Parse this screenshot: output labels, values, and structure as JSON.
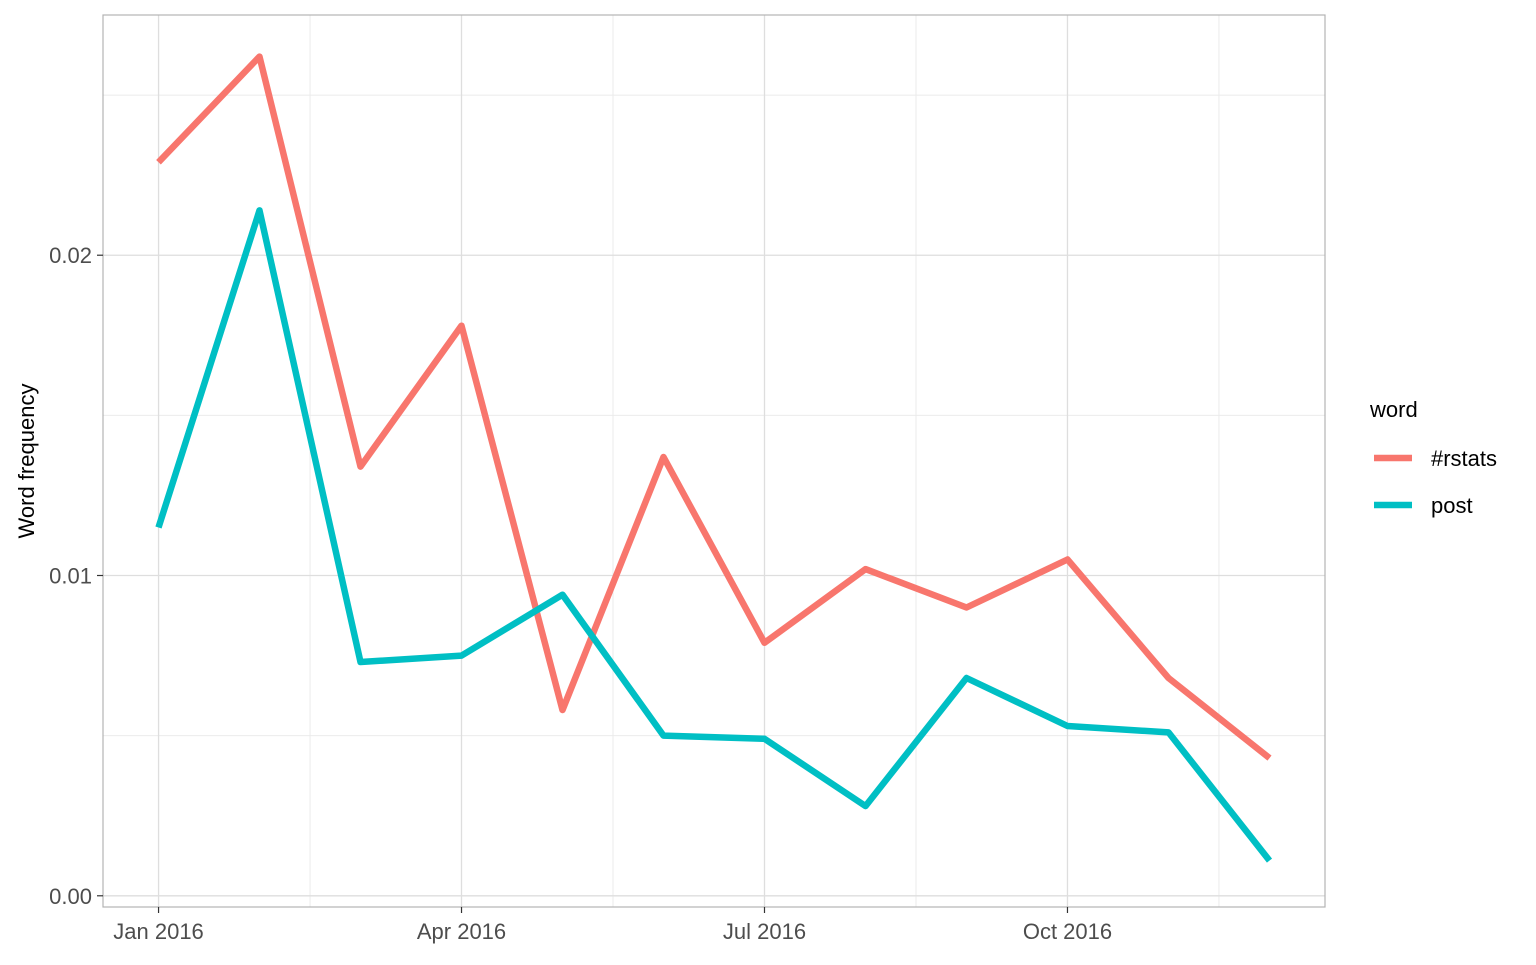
{
  "chart_data": {
    "type": "line",
    "title": "",
    "xlabel": "",
    "ylabel": "Word frequency",
    "x": [
      "2016-01",
      "2016-02",
      "2016-03",
      "2016-04",
      "2016-05",
      "2016-06",
      "2016-07",
      "2016-08",
      "2016-09",
      "2016-10",
      "2016-11",
      "2016-12"
    ],
    "x_ticks": [
      {
        "date": "2016-01",
        "label": "Jan 2016"
      },
      {
        "date": "2016-04",
        "label": "Apr 2016"
      },
      {
        "date": "2016-07",
        "label": "Jul 2016"
      },
      {
        "date": "2016-10",
        "label": "Oct 2016"
      }
    ],
    "y_ticks": [
      {
        "value": 0.0,
        "label": "0.00"
      },
      {
        "value": 0.01,
        "label": "0.01"
      },
      {
        "value": 0.02,
        "label": "0.02"
      }
    ],
    "ylim": [
      -0.00035,
      0.0275
    ],
    "grid": true,
    "legend": {
      "title": "word",
      "position": "right"
    },
    "series": [
      {
        "name": "#rstats",
        "color": "#F8766D",
        "values": [
          0.0229,
          0.0262,
          0.0134,
          0.0178,
          0.0058,
          0.0137,
          0.0079,
          0.0102,
          0.009,
          0.0105,
          0.0068,
          0.0043
        ]
      },
      {
        "name": "post",
        "color": "#00BFC4",
        "values": [
          0.0115,
          0.0214,
          0.0073,
          0.0075,
          0.0094,
          0.005,
          0.0049,
          0.0028,
          0.0068,
          0.0053,
          0.0051,
          0.0011
        ]
      }
    ]
  }
}
